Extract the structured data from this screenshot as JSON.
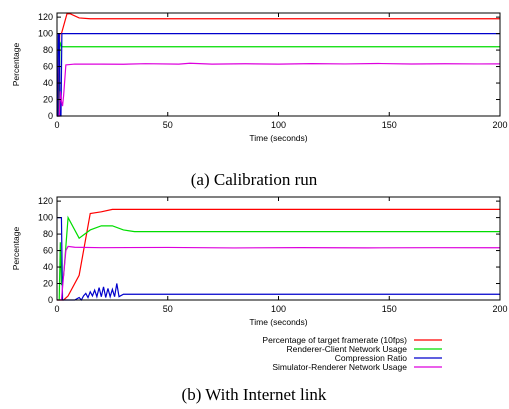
{
  "chart_data": [
    {
      "type": "line",
      "caption": "(a) Calibration run",
      "xlabel": "Time (seconds)",
      "ylabel": "Percentage",
      "xlim": [
        0,
        200
      ],
      "ylim": [
        0,
        125
      ],
      "xticks": [
        0,
        50,
        100,
        150,
        200
      ],
      "yticks": [
        0,
        20,
        40,
        60,
        80,
        100,
        120
      ],
      "grid": false,
      "legend": "none",
      "series": [
        {
          "color": "#ff0000",
          "points": [
            [
              0,
              0
            ],
            [
              0.8,
              0
            ],
            [
              1.2,
              100
            ],
            [
              2,
              100
            ],
            [
              4.5,
              124
            ],
            [
              6,
              124
            ],
            [
              10,
              119
            ],
            [
              15,
              118
            ],
            [
              200,
              118
            ]
          ]
        },
        {
          "color": "#00dd00",
          "points": [
            [
              0,
              0
            ],
            [
              1,
              0
            ],
            [
              1.3,
              90
            ],
            [
              2,
              84
            ],
            [
              200,
              84
            ]
          ]
        },
        {
          "color": "#0000cc",
          "points": [
            [
              0,
              0
            ],
            [
              0.4,
              0
            ],
            [
              0.6,
              100
            ],
            [
              1,
              100
            ],
            [
              1.4,
              0
            ],
            [
              1.8,
              0
            ],
            [
              2.2,
              100
            ],
            [
              200,
              100
            ]
          ]
        },
        {
          "color": "#dd00dd",
          "points": [
            [
              0,
              0
            ],
            [
              1,
              0
            ],
            [
              1.5,
              30
            ],
            [
              2,
              18
            ],
            [
              2.5,
              12
            ],
            [
              3,
              25
            ],
            [
              4,
              62
            ],
            [
              8,
              63
            ],
            [
              20,
              63
            ],
            [
              30,
              62.8
            ],
            [
              40,
              63.5
            ],
            [
              55,
              63
            ],
            [
              60,
              64
            ],
            [
              70,
              63
            ],
            [
              85,
              63.4
            ],
            [
              100,
              63
            ],
            [
              115,
              63.6
            ],
            [
              130,
              63.2
            ],
            [
              145,
              63.7
            ],
            [
              160,
              63.1
            ],
            [
              175,
              63.4
            ],
            [
              190,
              63.2
            ],
            [
              200,
              63.3
            ]
          ]
        }
      ]
    },
    {
      "type": "line",
      "caption": "(b) With Internet link",
      "xlabel": "Time (seconds)",
      "ylabel": "Percentage",
      "xlim": [
        0,
        200
      ],
      "ylim": [
        0,
        125
      ],
      "xticks": [
        0,
        50,
        100,
        150,
        200
      ],
      "yticks": [
        0,
        20,
        40,
        60,
        80,
        100,
        120
      ],
      "grid": false,
      "legend": "bottom-right",
      "series": [
        {
          "name": "Percentage of target framerate (10fps)",
          "color": "#ff0000",
          "points": [
            [
              0,
              0
            ],
            [
              3,
              0
            ],
            [
              5,
              5
            ],
            [
              10,
              30
            ],
            [
              15,
              105
            ],
            [
              20,
              107
            ],
            [
              25,
              110
            ],
            [
              200,
              110
            ]
          ]
        },
        {
          "name": "Renderer-Client Network Usage",
          "color": "#00dd00",
          "points": [
            [
              0,
              0
            ],
            [
              1,
              0
            ],
            [
              1.5,
              70
            ],
            [
              2,
              18
            ],
            [
              3,
              30
            ],
            [
              5,
              100
            ],
            [
              10,
              75
            ],
            [
              15,
              85
            ],
            [
              20,
              90
            ],
            [
              25,
              90
            ],
            [
              30,
              85
            ],
            [
              35,
              83
            ],
            [
              200,
              83
            ]
          ]
        },
        {
          "name": "Compression Ratio",
          "color": "#0000cc",
          "points": [
            [
              0,
              100
            ],
            [
              2,
              100
            ],
            [
              2.5,
              0
            ],
            [
              8,
              0
            ],
            [
              10,
              3
            ],
            [
              11,
              0
            ],
            [
              12,
              5
            ],
            [
              13,
              8
            ],
            [
              14,
              3
            ],
            [
              15,
              10
            ],
            [
              16,
              5
            ],
            [
              17,
              12
            ],
            [
              18,
              4
            ],
            [
              19,
              15
            ],
            [
              20,
              4
            ],
            [
              21,
              16
            ],
            [
              22,
              3
            ],
            [
              23,
              14
            ],
            [
              24,
              4
            ],
            [
              25,
              13
            ],
            [
              26,
              4
            ],
            [
              27,
              20
            ],
            [
              28,
              4
            ],
            [
              30,
              7
            ],
            [
              200,
              7
            ]
          ]
        },
        {
          "name": "Simulator-Renderer Network Usage",
          "color": "#dd00dd",
          "points": [
            [
              0,
              0
            ],
            [
              2,
              0
            ],
            [
              3,
              30
            ],
            [
              4,
              60
            ],
            [
              5,
              65
            ],
            [
              8,
              64
            ],
            [
              20,
              63.5
            ],
            [
              50,
              63.8
            ],
            [
              80,
              63.2
            ],
            [
              110,
              63.6
            ],
            [
              140,
              63.3
            ],
            [
              170,
              63.5
            ],
            [
              200,
              63.4
            ]
          ]
        }
      ]
    }
  ]
}
